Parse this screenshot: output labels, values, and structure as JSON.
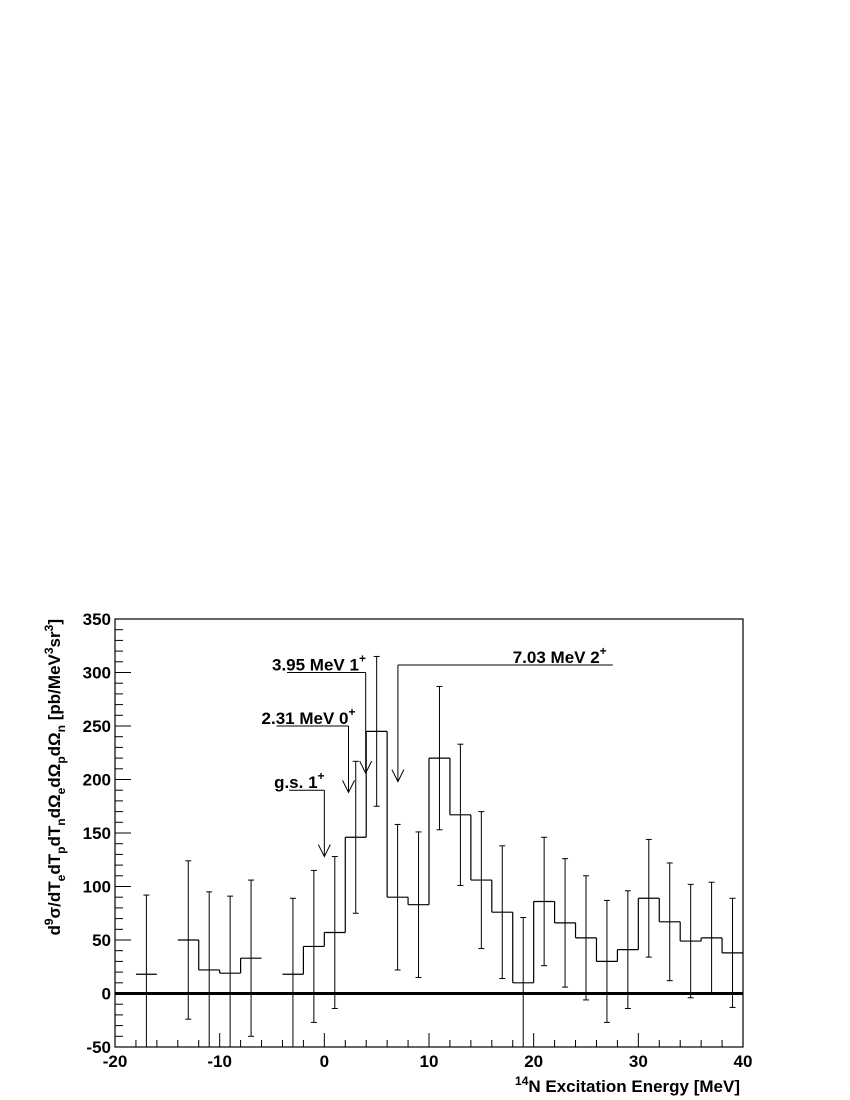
{
  "chart_data": {
    "type": "histogram",
    "x_axis": {
      "label_sup": "14",
      "label": "N Excitation Energy [MeV]",
      "range": [
        -20,
        40
      ],
      "ticks": [
        -20,
        -10,
        0,
        10,
        20,
        30,
        40
      ],
      "tick_labels": [
        "-20",
        "-10",
        "0",
        "10",
        "20",
        "30",
        "40"
      ]
    },
    "y_axis": {
      "label_parts": [
        {
          "t": "d",
          "s": "base"
        },
        {
          "t": "9",
          "s": "sup"
        },
        {
          "t": "σ/dT",
          "s": "base"
        },
        {
          "t": "e",
          "s": "sub"
        },
        {
          "t": "dT",
          "s": "base"
        },
        {
          "t": "p",
          "s": "sub"
        },
        {
          "t": "dT",
          "s": "base"
        },
        {
          "t": "n",
          "s": "sub"
        },
        {
          "t": "dΩ",
          "s": "base"
        },
        {
          "t": "e",
          "s": "sub"
        },
        {
          "t": "dΩ",
          "s": "base"
        },
        {
          "t": "p",
          "s": "sub"
        },
        {
          "t": "dΩ",
          "s": "base"
        },
        {
          "t": "n",
          "s": "sub"
        },
        {
          "t": "  [pb/MeV",
          "s": "base"
        },
        {
          "t": "3",
          "s": "sup"
        },
        {
          "t": "sr",
          "s": "base"
        },
        {
          "t": "3",
          "s": "sup"
        },
        {
          "t": "]",
          "s": "base"
        }
      ],
      "range": [
        -50,
        350
      ],
      "ticks": [
        -50,
        0,
        50,
        100,
        150,
        200,
        250,
        300,
        350
      ],
      "tick_labels": [
        "-50",
        "0",
        "50",
        "100",
        "150",
        "200",
        "250",
        "300",
        "350"
      ]
    },
    "bins": [
      {
        "x0": -18,
        "x1": -16,
        "y": 18,
        "err": 74
      },
      {
        "x0": -14,
        "x1": -12,
        "y": 50,
        "err": 74
      },
      {
        "x0": -12,
        "x1": -10,
        "y": 22,
        "err": 73
      },
      {
        "x0": -10,
        "x1": -8,
        "y": 19,
        "err": 72
      },
      {
        "x0": -8,
        "x1": -6,
        "y": 33,
        "err": 73
      },
      {
        "x0": -4,
        "x1": -2,
        "y": 18,
        "err": 71
      },
      {
        "x0": -2,
        "x1": 0,
        "y": 44,
        "err": 71
      },
      {
        "x0": 0,
        "x1": 2,
        "y": 57,
        "err": 71
      },
      {
        "x0": 2,
        "x1": 4,
        "y": 146,
        "err": 71
      },
      {
        "x0": 4,
        "x1": 6,
        "y": 245,
        "err": 70
      },
      {
        "x0": 6,
        "x1": 8,
        "y": 90,
        "err": 68
      },
      {
        "x0": 8,
        "x1": 10,
        "y": 83,
        "err": 68
      },
      {
        "x0": 10,
        "x1": 12,
        "y": 220,
        "err": 67
      },
      {
        "x0": 12,
        "x1": 14,
        "y": 167,
        "err": 66
      },
      {
        "x0": 14,
        "x1": 16,
        "y": 106,
        "err": 64
      },
      {
        "x0": 16,
        "x1": 18,
        "y": 76,
        "err": 62
      },
      {
        "x0": 18,
        "x1": 20,
        "y": 10,
        "err": 61
      },
      {
        "x0": 20,
        "x1": 22,
        "y": 86,
        "err": 60
      },
      {
        "x0": 22,
        "x1": 24,
        "y": 66,
        "err": 60
      },
      {
        "x0": 24,
        "x1": 26,
        "y": 52,
        "err": 58
      },
      {
        "x0": 26,
        "x1": 28,
        "y": 30,
        "err": 57
      },
      {
        "x0": 28,
        "x1": 30,
        "y": 41,
        "err": 55
      },
      {
        "x0": 30,
        "x1": 32,
        "y": 89,
        "err": 55
      },
      {
        "x0": 32,
        "x1": 34,
        "y": 67,
        "err": 55
      },
      {
        "x0": 34,
        "x1": 36,
        "y": 49,
        "err": 53
      },
      {
        "x0": 36,
        "x1": 38,
        "y": 52,
        "err": 52
      },
      {
        "x0": 38,
        "x1": 40,
        "y": 38,
        "err": 51
      }
    ],
    "zero_line": 0,
    "annotations": [
      {
        "text": "g.s. 1",
        "sup": "+",
        "x": 0.0,
        "label_x": -4.8,
        "label_y": 190,
        "tip_y": 128
      },
      {
        "text": "2.31 MeV 0",
        "sup": "+",
        "x": 2.31,
        "label_x": -6.0,
        "label_y": 250,
        "tip_y": 188
      },
      {
        "text": "3.95 MeV 1",
        "sup": "+",
        "x": 3.95,
        "label_x": -5.0,
        "label_y": 300,
        "tip_y": 206
      },
      {
        "text": "7.03 MeV 2",
        "sup": "+",
        "x": 7.03,
        "label_x": 18.0,
        "label_y": 307,
        "tip_y": 198
      }
    ]
  }
}
